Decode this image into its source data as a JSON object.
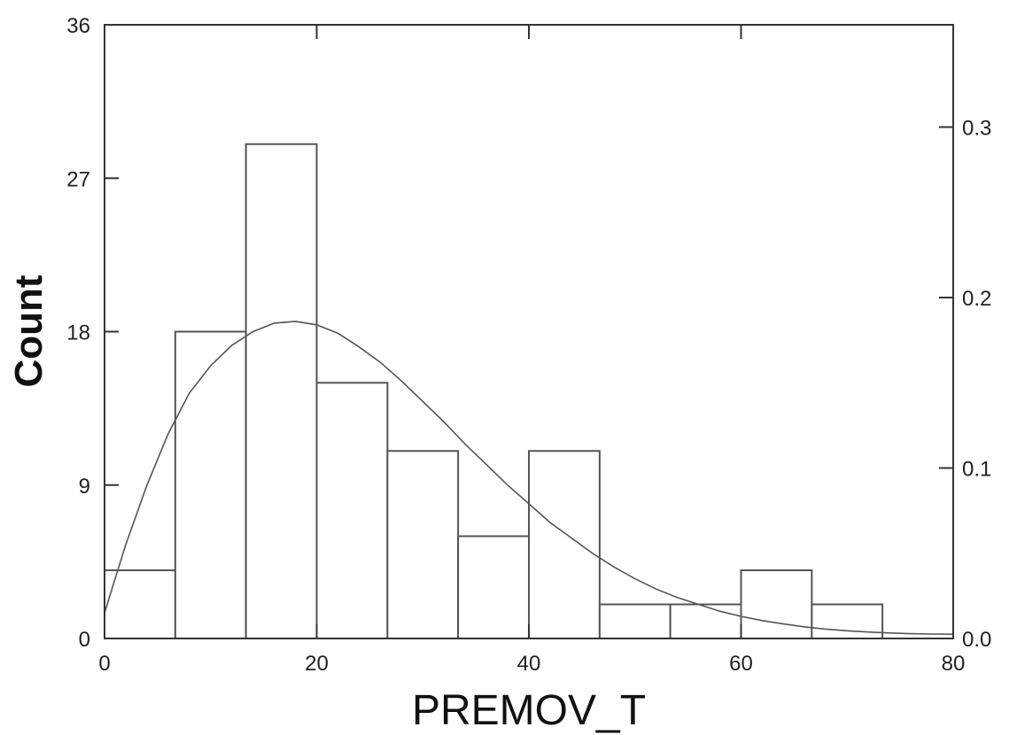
{
  "chart_data": {
    "type": "bar",
    "subtype": "histogram",
    "xlabel": "PREMOV_T",
    "ylabel": "Count",
    "xlim": [
      0,
      80
    ],
    "ylim": [
      0,
      36
    ],
    "y2lim": [
      0,
      0.36
    ],
    "x_ticks": [
      "0",
      "20",
      "40",
      "60",
      "80"
    ],
    "y_ticks": [
      "0",
      "9",
      "18",
      "27",
      "36"
    ],
    "y2_ticks": [
      "0.0",
      "0.1",
      "0.2",
      "0.3"
    ],
    "bins": [
      {
        "x0": 0,
        "x1": 6.67,
        "count": 4
      },
      {
        "x0": 6.67,
        "x1": 13.33,
        "count": 18
      },
      {
        "x0": 13.33,
        "x1": 20,
        "count": 29
      },
      {
        "x0": 20,
        "x1": 26.67,
        "count": 15
      },
      {
        "x0": 26.67,
        "x1": 33.33,
        "count": 11
      },
      {
        "x0": 33.33,
        "x1": 40,
        "count": 6
      },
      {
        "x0": 40,
        "x1": 46.67,
        "count": 11
      },
      {
        "x0": 46.67,
        "x1": 53.33,
        "count": 2
      },
      {
        "x0": 53.33,
        "x1": 60,
        "count": 2
      },
      {
        "x0": 60,
        "x1": 66.67,
        "count": 4
      },
      {
        "x0": 66.67,
        "x1": 73.33,
        "count": 2
      }
    ],
    "density_curve": {
      "x": [
        0,
        2,
        4,
        6,
        8,
        10,
        12,
        14,
        16,
        18,
        20,
        22,
        24,
        26,
        28,
        30,
        32,
        34,
        36,
        38,
        40,
        42,
        44,
        46,
        48,
        50,
        52,
        54,
        56,
        58,
        60,
        62,
        64,
        66,
        68,
        70,
        72,
        74,
        76,
        78,
        80
      ],
      "y": [
        1.5,
        5.5,
        9.0,
        12.0,
        14.4,
        16.0,
        17.2,
        18.0,
        18.5,
        18.6,
        18.4,
        17.9,
        17.1,
        16.2,
        15.1,
        13.9,
        12.7,
        11.4,
        10.2,
        9.0,
        7.9,
        6.8,
        5.9,
        5.0,
        4.2,
        3.5,
        2.9,
        2.4,
        2.0,
        1.6,
        1.3,
        1.05,
        0.85,
        0.68,
        0.55,
        0.45,
        0.38,
        0.32,
        0.28,
        0.26,
        0.25
      ]
    },
    "colors": {
      "bar_fill": "#ffffff",
      "bar_stroke": "#555555",
      "curve": "#555555",
      "axis": "#333333"
    },
    "grid": false,
    "legend": "none"
  }
}
